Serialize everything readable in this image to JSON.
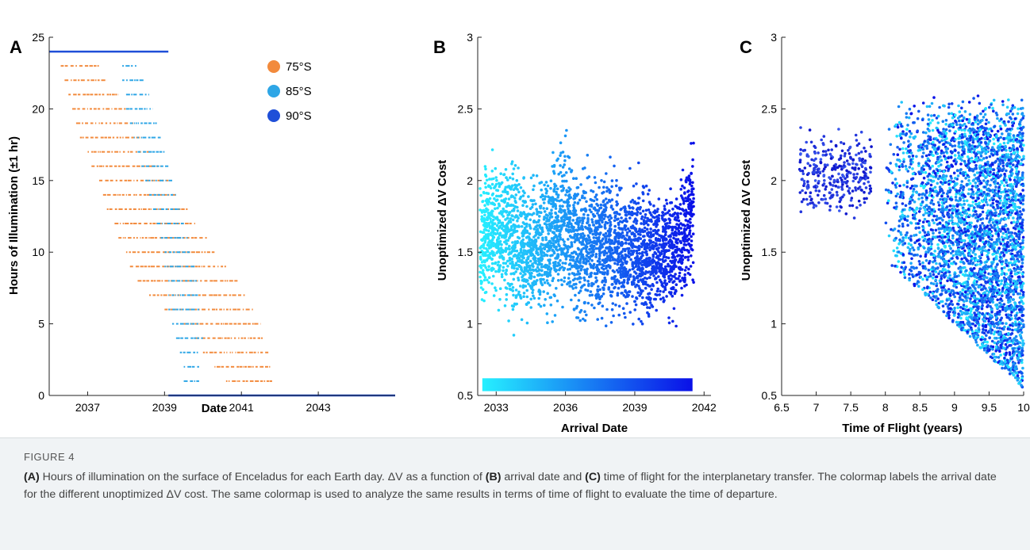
{
  "figure": {
    "label": "FIGURE 4"
  },
  "caption": {
    "s1_a": "(A)",
    "s1_text": " Hours of illumination on the surface of Enceladus for each Earth day. ΔV as a function of ",
    "s1_b": "(B)",
    "s1_text2": " arrival date and ",
    "s1_c": "(C)",
    "s1_text3": " time of flight for the interplanetary transfer. The colormap labels the arrival date for the different unoptimized ΔV cost. The same colormap is used to analyze the same results in terms of time of flight to evaluate the time of departure."
  },
  "chart_data": [
    {
      "panel": "A",
      "type": "scatter",
      "xlabel": "Date",
      "ylabel": "Hours of Illumination (±1 hr)",
      "xlim": [
        2036,
        2045
      ],
      "ylim": [
        0,
        25
      ],
      "xticks": [
        2037,
        2039,
        2041,
        2043
      ],
      "yticks": [
        0,
        5,
        10,
        15,
        20,
        25
      ],
      "legend_position": "top-right",
      "series": [
        {
          "name": "75°S",
          "color": "#f28a3c",
          "note_pattern": "diagonal band of dashed horizontal segments, one row per hour",
          "rows": [
            {
              "h": 23,
              "x0": 2036.3,
              "x1": 2037.3
            },
            {
              "h": 22,
              "x0": 2036.4,
              "x1": 2037.5
            },
            {
              "h": 21,
              "x0": 2036.5,
              "x1": 2037.8
            },
            {
              "h": 20,
              "x0": 2036.6,
              "x1": 2038.0
            },
            {
              "h": 19,
              "x0": 2036.7,
              "x1": 2038.2
            },
            {
              "h": 18,
              "x0": 2036.8,
              "x1": 2038.4
            },
            {
              "h": 17,
              "x0": 2037.0,
              "x1": 2038.6
            },
            {
              "h": 16,
              "x0": 2037.1,
              "x1": 2038.9
            },
            {
              "h": 15,
              "x0": 2037.3,
              "x1": 2039.1
            },
            {
              "h": 14,
              "x0": 2037.4,
              "x1": 2039.3
            },
            {
              "h": 13,
              "x0": 2037.5,
              "x1": 2039.6
            },
            {
              "h": 12,
              "x0": 2037.7,
              "x1": 2039.8
            },
            {
              "h": 11,
              "x0": 2037.8,
              "x1": 2040.1
            },
            {
              "h": 10,
              "x0": 2038.0,
              "x1": 2040.3
            },
            {
              "h": 9,
              "x0": 2038.1,
              "x1": 2040.6
            },
            {
              "h": 8,
              "x0": 2038.3,
              "x1": 2040.9
            },
            {
              "h": 7,
              "x0": 2038.6,
              "x1": 2041.1
            },
            {
              "h": 6,
              "x0": 2039.0,
              "x1": 2041.3
            },
            {
              "h": 5,
              "x0": 2039.5,
              "x1": 2041.5
            },
            {
              "h": 4,
              "x0": 2039.8,
              "x1": 2041.6
            },
            {
              "h": 3,
              "x0": 2040.0,
              "x1": 2041.7
            },
            {
              "h": 2,
              "x0": 2040.3,
              "x1": 2041.8
            },
            {
              "h": 1,
              "x0": 2040.6,
              "x1": 2041.8
            }
          ]
        },
        {
          "name": "85°S",
          "color": "#2ea6e6",
          "rows": [
            {
              "h": 23,
              "x0": 2037.9,
              "x1": 2038.3
            },
            {
              "h": 22,
              "x0": 2037.9,
              "x1": 2038.5
            },
            {
              "h": 21,
              "x0": 2038.0,
              "x1": 2038.6
            },
            {
              "h": 20,
              "x0": 2038.0,
              "x1": 2038.7
            },
            {
              "h": 19,
              "x0": 2038.1,
              "x1": 2038.8
            },
            {
              "h": 18,
              "x0": 2038.2,
              "x1": 2038.9
            },
            {
              "h": 17,
              "x0": 2038.3,
              "x1": 2039.0
            },
            {
              "h": 16,
              "x0": 2038.4,
              "x1": 2039.1
            },
            {
              "h": 15,
              "x0": 2038.5,
              "x1": 2039.2
            },
            {
              "h": 14,
              "x0": 2038.6,
              "x1": 2039.3
            },
            {
              "h": 13,
              "x0": 2038.7,
              "x1": 2039.4
            },
            {
              "h": 12,
              "x0": 2038.8,
              "x1": 2039.5
            },
            {
              "h": 11,
              "x0": 2038.9,
              "x1": 2039.6
            },
            {
              "h": 10,
              "x0": 2039.0,
              "x1": 2039.7
            },
            {
              "h": 9,
              "x0": 2039.0,
              "x1": 2039.8
            },
            {
              "h": 8,
              "x0": 2039.1,
              "x1": 2039.9
            },
            {
              "h": 7,
              "x0": 2039.1,
              "x1": 2039.9
            },
            {
              "h": 6,
              "x0": 2039.1,
              "x1": 2039.9
            },
            {
              "h": 5,
              "x0": 2039.2,
              "x1": 2039.9
            },
            {
              "h": 4,
              "x0": 2039.3,
              "x1": 2040.0
            },
            {
              "h": 3,
              "x0": 2039.4,
              "x1": 2039.9
            },
            {
              "h": 2,
              "x0": 2039.5,
              "x1": 2039.9
            },
            {
              "h": 1,
              "x0": 2039.5,
              "x1": 2039.9
            }
          ]
        },
        {
          "name": "90°S",
          "color": "#1f4fd8",
          "segments": [
            {
              "h": 24,
              "x0": 2036.0,
              "x1": 2039.1
            },
            {
              "h": 0,
              "x0": 2039.1,
              "x1": 2045.0
            }
          ]
        }
      ]
    },
    {
      "panel": "B",
      "type": "scatter",
      "xlabel": "Arrival Date",
      "ylabel": "Unoptimized ΔV Cost",
      "xlim": [
        2032.2,
        2042.3
      ],
      "ylim": [
        0.5,
        3
      ],
      "xticks": [
        2033,
        2036,
        2039,
        2042
      ],
      "yticks": [
        0.5,
        1,
        1.5,
        2,
        2.5,
        3
      ],
      "colormap": {
        "start": "#26f0ff",
        "end": "#0a10e8",
        "variable": "arrival date"
      },
      "colorbar_position": "bottom, inside axes",
      "envelope_min": [
        [
          2032.3,
          0.85
        ],
        [
          2033.0,
          0.95
        ],
        [
          2033.8,
          0.65
        ],
        [
          2034.5,
          0.75
        ],
        [
          2035.2,
          0.7
        ],
        [
          2035.9,
          0.8
        ],
        [
          2036.6,
          0.65
        ],
        [
          2037.3,
          0.75
        ],
        [
          2038.0,
          0.7
        ],
        [
          2038.7,
          0.72
        ],
        [
          2039.4,
          0.68
        ],
        [
          2040.2,
          0.75
        ],
        [
          2040.9,
          0.65
        ],
        [
          2041.5,
          1.0
        ]
      ],
      "envelope_max": [
        [
          2032.3,
          2.35
        ],
        [
          2033.0,
          2.4
        ],
        [
          2033.8,
          2.5
        ],
        [
          2034.5,
          2.3
        ],
        [
          2035.2,
          2.45
        ],
        [
          2035.9,
          2.62
        ],
        [
          2036.6,
          2.45
        ],
        [
          2037.3,
          2.42
        ],
        [
          2038.0,
          2.35
        ],
        [
          2038.7,
          2.3
        ],
        [
          2039.4,
          2.28
        ],
        [
          2040.2,
          2.25
        ],
        [
          2040.9,
          2.38
        ],
        [
          2041.5,
          2.62
        ]
      ]
    },
    {
      "panel": "C",
      "type": "scatter",
      "xlabel": "Time of Flight (years)",
      "ylabel": "Unoptimized ΔV Cost",
      "xlim": [
        6.5,
        10
      ],
      "ylim": [
        0.5,
        3
      ],
      "xticks": [
        6.5,
        7,
        7.5,
        8,
        8.5,
        9,
        9.5,
        10
      ],
      "yticks": [
        0.5,
        1,
        1.5,
        2,
        2.5,
        3
      ],
      "colormap": {
        "start": "#26f0ff",
        "end": "#0a10e8",
        "variable": "arrival date"
      },
      "clusters": [
        {
          "x_range": [
            6.75,
            7.8
          ],
          "y_range": [
            1.25,
            2.6
          ],
          "density": "sparse"
        },
        {
          "x_range": [
            8.0,
            10.0
          ],
          "y_range": [
            0.55,
            2.65
          ],
          "density": "dense"
        }
      ]
    }
  ],
  "panel_labels": [
    "A",
    "B",
    "C"
  ],
  "panelA": {
    "label": "A",
    "xlabel": "Date",
    "ylabel": "Hours of Illumination (±1 hr)",
    "xticks": [
      "2037",
      "2039",
      "2041",
      "2043"
    ],
    "yticks": [
      "0",
      "5",
      "10",
      "15",
      "20",
      "25"
    ],
    "legend": [
      "75°S",
      "85°S",
      "90°S"
    ]
  },
  "panelB": {
    "label": "B",
    "xlabel": "Arrival Date",
    "ylabel": "Unoptimized ΔV Cost",
    "xticks": [
      "2033",
      "2036",
      "2039",
      "2042"
    ],
    "yticks": [
      "0.5",
      "1",
      "1.5",
      "2",
      "2.5",
      "3"
    ]
  },
  "panelC": {
    "label": "C",
    "xlabel": "Time of Flight (years)",
    "ylabel": "Unoptimized ΔV Cost",
    "xticks": [
      "6.5",
      "7",
      "7.5",
      "8",
      "8.5",
      "9",
      "9.5",
      "10"
    ],
    "yticks": [
      "0.5",
      "1",
      "1.5",
      "2",
      "2.5",
      "3"
    ]
  }
}
